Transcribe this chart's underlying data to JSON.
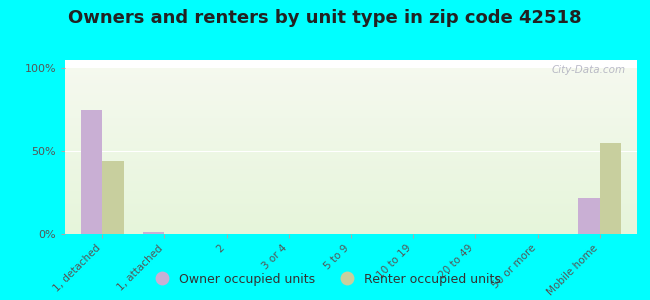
{
  "title": "Owners and renters by unit type in zip code 42518",
  "categories": [
    "1, detached",
    "1, attached",
    "2",
    "3 or 4",
    "5 to 9",
    "10 to 19",
    "20 to 49",
    "50 or more",
    "Mobile home"
  ],
  "owner_values": [
    75,
    1,
    0,
    0,
    0,
    0,
    0,
    0,
    22
  ],
  "renter_values": [
    44,
    0,
    0,
    0,
    0,
    0,
    0,
    0,
    55
  ],
  "owner_color": "#c9afd4",
  "renter_color": "#c8cf9e",
  "background_color": "#00ffff",
  "ylabel_ticks": [
    "0%",
    "50%",
    "100%"
  ],
  "yticks": [
    0,
    50,
    100
  ],
  "ylim": [
    0,
    105
  ],
  "title_fontsize": 13,
  "legend_owner": "Owner occupied units",
  "legend_renter": "Renter occupied units",
  "watermark": "City-Data.com",
  "bar_width": 0.35
}
